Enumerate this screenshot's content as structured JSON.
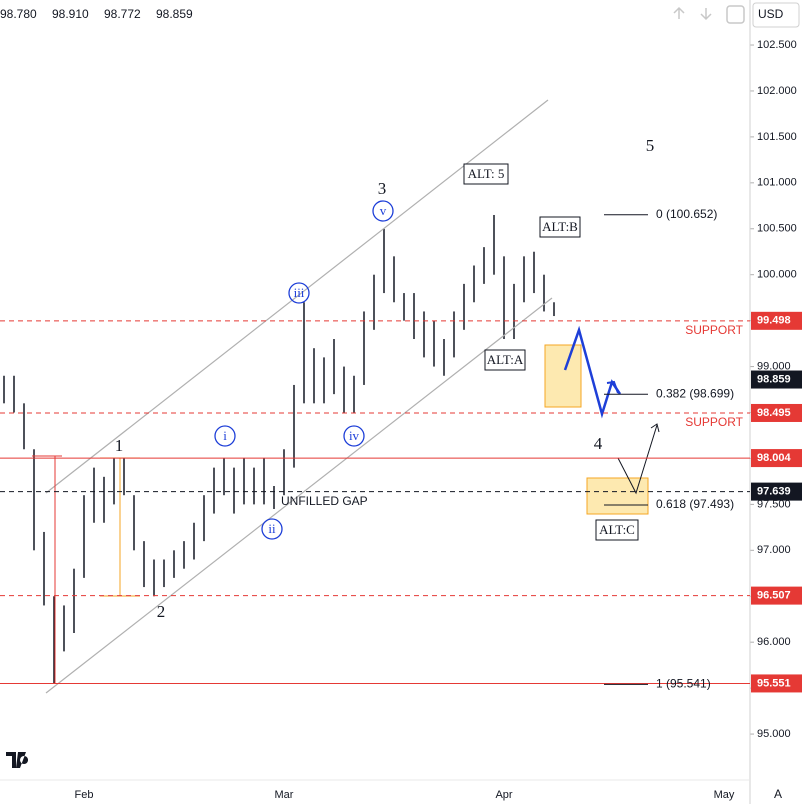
{
  "header": {
    "ohlc": [
      "98.780",
      "98.910",
      "98.772",
      "98.859"
    ],
    "currency": "USD",
    "scale_mode": "A"
  },
  "chart_data": {
    "type": "range-bar",
    "color": "#131722",
    "categories": [
      null,
      null,
      null,
      null,
      null,
      null,
      null,
      null,
      "Feb",
      null,
      null,
      null,
      null,
      null,
      null,
      null,
      null,
      null,
      null,
      null,
      null,
      null,
      null,
      null,
      null,
      null,
      null,
      null,
      "Mar",
      null,
      null,
      null,
      null,
      null,
      null,
      null,
      null,
      null,
      null,
      null,
      null,
      null,
      null,
      null,
      null,
      null,
      null,
      null,
      null,
      null,
      "Apr",
      null,
      null,
      null,
      null,
      null,
      null,
      null,
      null,
      null,
      null,
      null,
      null,
      null,
      null,
      null,
      null,
      null,
      null,
      null,
      null,
      null,
      "May",
      null,
      null
    ],
    "series": [
      {
        "name": "High",
        "values": [
          98.9,
          98.9,
          98.6,
          98.1,
          97.2,
          96.5,
          96.4,
          96.8,
          97.6,
          97.9,
          97.8,
          98.0,
          98.0,
          97.6,
          97.1,
          96.9,
          96.9,
          97.0,
          97.1,
          97.3,
          97.6,
          97.9,
          98.0,
          97.9,
          98.0,
          97.9,
          98.0,
          97.7,
          98.1,
          98.8,
          99.7,
          99.2,
          99.1,
          99.3,
          99.0,
          98.9,
          99.6,
          100.0,
          100.5,
          100.2,
          99.8,
          99.8,
          99.6,
          99.5,
          99.3,
          99.6,
          99.9,
          100.1,
          100.3,
          100.65,
          100.2,
          99.9,
          100.2,
          100.25,
          100.0,
          99.7,
          null,
          null,
          null,
          null,
          null,
          null,
          null,
          null,
          null,
          null,
          null,
          null,
          null,
          null,
          null,
          null,
          null,
          null,
          null
        ]
      },
      {
        "name": "Low",
        "values": [
          98.6,
          98.5,
          98.1,
          97.0,
          96.4,
          95.55,
          95.9,
          96.1,
          96.7,
          97.3,
          97.3,
          97.5,
          97.6,
          97.0,
          96.6,
          96.5,
          96.6,
          96.7,
          96.8,
          96.9,
          97.1,
          97.4,
          97.6,
          97.4,
          97.5,
          97.5,
          97.5,
          97.45,
          97.6,
          97.9,
          98.6,
          98.6,
          98.6,
          98.7,
          98.5,
          98.5,
          98.8,
          99.4,
          99.8,
          99.7,
          99.5,
          99.3,
          99.1,
          99.0,
          98.9,
          99.1,
          99.4,
          99.7,
          99.9,
          100.0,
          99.3,
          99.3,
          99.7,
          99.8,
          99.6,
          99.55,
          null,
          null,
          null,
          null,
          null,
          null,
          null,
          null,
          null,
          null,
          null,
          null,
          null,
          null,
          null,
          null,
          null,
          null,
          null
        ]
      }
    ],
    "ylim": [
      94.5,
      102.99
    ],
    "yticks": [
      {
        "value": 95,
        "label": "95.000"
      },
      {
        "value": 95.5,
        "label": "95.500"
      },
      {
        "value": 96,
        "label": "96.000"
      },
      {
        "value": 96.5,
        "label": "96.500"
      },
      {
        "value": 97,
        "label": "97.000"
      },
      {
        "value": 97.5,
        "label": "97.500"
      },
      {
        "value": 98,
        "label": "98.000"
      },
      {
        "value": 98.5,
        "label": "98.500"
      },
      {
        "value": 99,
        "label": "99.000"
      },
      {
        "value": 99.5,
        "label": "99.500"
      },
      {
        "value": 100,
        "label": "100.000"
      },
      {
        "value": 100.5,
        "label": "100.500"
      },
      {
        "value": 101,
        "label": "101.000"
      },
      {
        "value": 101.5,
        "label": "101.500"
      },
      {
        "value": 102,
        "label": "102.000"
      },
      {
        "value": 102.5,
        "label": "102.500"
      }
    ],
    "levels": [
      {
        "value": 99.498,
        "style": "dashed",
        "color": "#e53935"
      },
      {
        "value": 98.495,
        "style": "dashed",
        "color": "#e53935"
      },
      {
        "value": 98.004,
        "style": "solid",
        "color": "#e53935"
      },
      {
        "value": 97.639,
        "style": "dashed",
        "color": "#131722"
      },
      {
        "value": 96.507,
        "style": "dashed",
        "color": "#e53935"
      },
      {
        "value": 95.551,
        "style": "solid",
        "color": "#e53935"
      }
    ],
    "last_price": {
      "value": 98.859,
      "color": "#131722"
    },
    "fib_levels": [
      {
        "value": 100.652,
        "label": "0 (100.652)"
      },
      {
        "value": 98.699,
        "label": "0.382 (98.699)"
      },
      {
        "value": 97.493,
        "label": "0.618 (97.493)"
      },
      {
        "value": 95.541,
        "label": "1 (95.541)"
      }
    ],
    "annotations": {
      "w1": "1",
      "w2": "2",
      "w3": "3",
      "w4": "4",
      "w5": "5",
      "wi": "i",
      "wii": "ii",
      "wiii": "iii",
      "wiv": "iv",
      "wv": "v",
      "alt5": "ALT: 5",
      "altb": "ALT:B",
      "alta": "ALT:A",
      "altc": "ALT:C",
      "support1": "SUPPORT",
      "support2": "SUPPORT",
      "gap": "UNFILLED GAP"
    }
  }
}
